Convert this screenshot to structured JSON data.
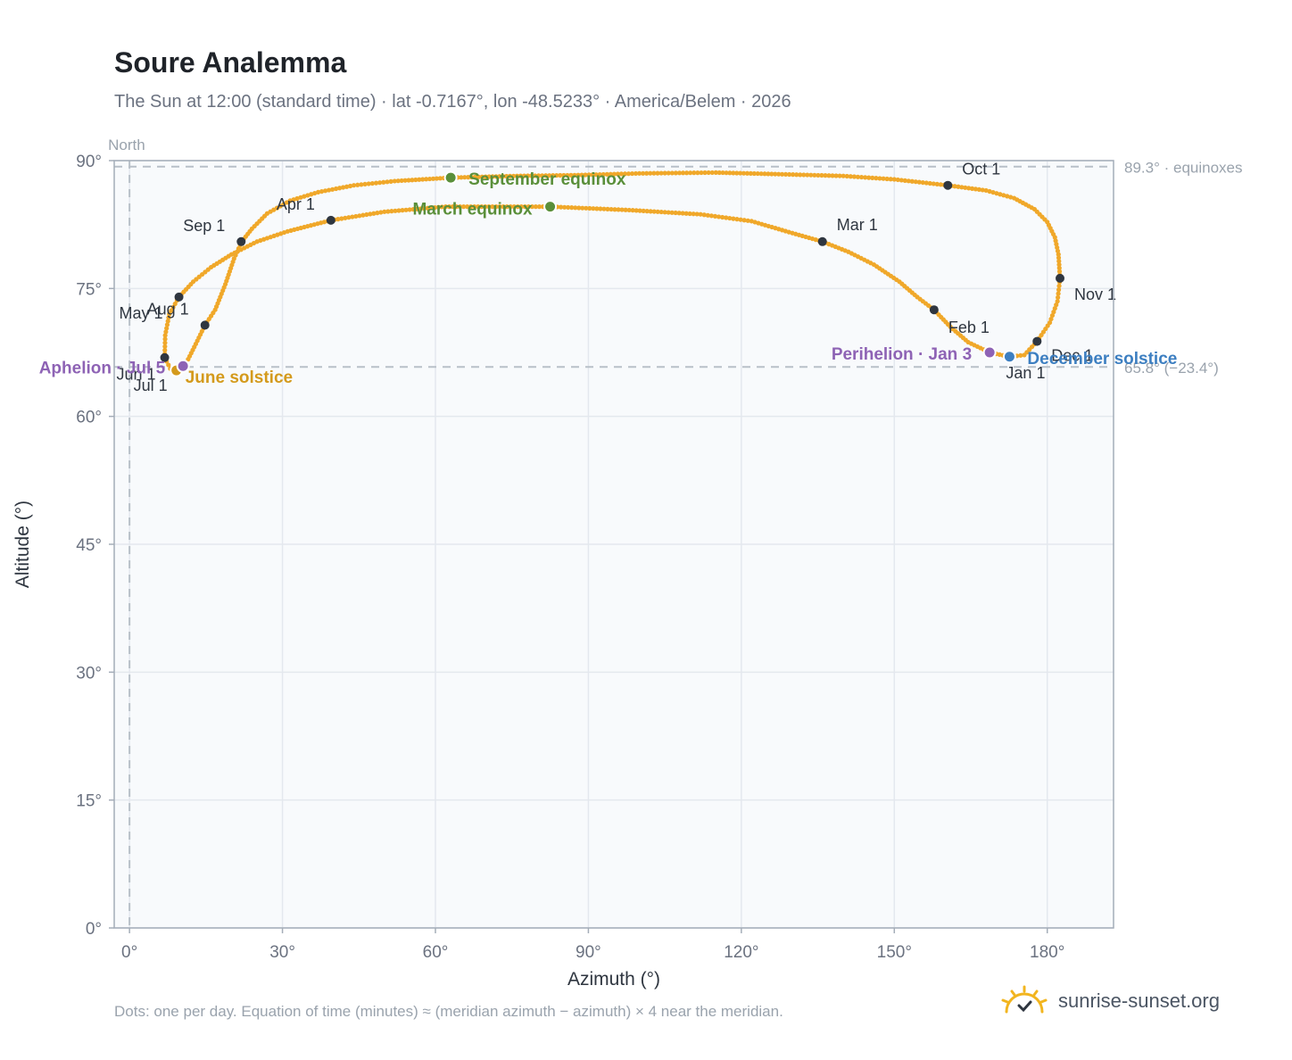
{
  "header": {
    "title": "Soure Analemma",
    "subtitle": "The Sun at 12:00 (standard time) · lat -0.7167°, lon -48.5233° · America/Belem · 2026"
  },
  "footer": {
    "note": "Dots: one per day. Equation of time (minutes) ≈ (meridian azimuth − azimuth) × 4 near the meridian.",
    "brand": "sunrise-sunset.org"
  },
  "colors": {
    "curve": "#f0a82a",
    "month_marker": "#2f3640",
    "equinox": "#5a8f3a",
    "june_solstice": "#d49a1c",
    "december_solstice": "#3d7fc1",
    "apsis": "#8e63b5",
    "reference_line": "#b8c0c8",
    "plot_background": "#f8fafc"
  },
  "chart_data": {
    "type": "scatter",
    "xlabel": "Azimuth (°)",
    "ylabel": "Altitude (°)",
    "xlim": [
      -3,
      193
    ],
    "ylim": [
      0,
      90
    ],
    "xticks": [
      0,
      30,
      60,
      90,
      120,
      150,
      180
    ],
    "xtick_labels": [
      "0°",
      "30°",
      "60°",
      "90°",
      "120°",
      "150°",
      "180°"
    ],
    "yticks": [
      0,
      15,
      30,
      45,
      60,
      75,
      90
    ],
    "ytick_labels": [
      "0°",
      "15°",
      "30°",
      "45°",
      "60°",
      "75°",
      "90°"
    ],
    "grid": true,
    "meridian": {
      "azimuth": 0,
      "label": "North"
    },
    "reference_lines": [
      {
        "altitude": 89.3,
        "label": "89.3° · equinoxes"
      },
      {
        "altitude": 65.8,
        "label": "65.8° (−23.4°)"
      }
    ],
    "analemma_path": [
      [
        172.6,
        67.0
      ],
      [
        175.5,
        67.2
      ],
      [
        178.0,
        68.8
      ],
      [
        180.5,
        71.0
      ],
      [
        182.0,
        73.5
      ],
      [
        182.5,
        76.2
      ],
      [
        182.2,
        79.0
      ],
      [
        181.5,
        81.0
      ],
      [
        180.0,
        82.8
      ],
      [
        177.5,
        84.3
      ],
      [
        173.5,
        85.6
      ],
      [
        168.0,
        86.5
      ],
      [
        160.5,
        87.1
      ],
      [
        150.0,
        87.8
      ],
      [
        140.0,
        88.2
      ],
      [
        128.0,
        88.4
      ],
      [
        115.0,
        88.6
      ],
      [
        100.0,
        88.5
      ],
      [
        88.0,
        88.3
      ],
      [
        76.0,
        88.2
      ],
      [
        63.0,
        88.0
      ],
      [
        52.0,
        87.6
      ],
      [
        44.0,
        87.1
      ],
      [
        37.0,
        86.3
      ],
      [
        31.5,
        85.3
      ],
      [
        27.0,
        83.8
      ],
      [
        24.0,
        82.0
      ],
      [
        22.0,
        80.5
      ],
      [
        20.5,
        78.5
      ],
      [
        18.8,
        75.5
      ],
      [
        16.8,
        72.5
      ],
      [
        14.8,
        70.7
      ],
      [
        13.0,
        68.5
      ],
      [
        11.5,
        66.7
      ],
      [
        10.5,
        65.9
      ],
      [
        9.2,
        65.4
      ],
      [
        8.0,
        65.6
      ],
      [
        6.9,
        66.9
      ],
      [
        7.0,
        69.5
      ],
      [
        7.8,
        72.0
      ],
      [
        9.7,
        74.0
      ],
      [
        12.5,
        75.8
      ],
      [
        16.0,
        77.5
      ],
      [
        20.0,
        79.0
      ],
      [
        25.0,
        80.5
      ],
      [
        31.0,
        81.7
      ],
      [
        39.5,
        83.0
      ],
      [
        50.0,
        84.0
      ],
      [
        62.0,
        84.6
      ],
      [
        82.5,
        84.6
      ],
      [
        98.0,
        84.2
      ],
      [
        112.0,
        83.7
      ],
      [
        122.0,
        82.9
      ],
      [
        130.0,
        81.5
      ],
      [
        135.9,
        80.5
      ],
      [
        141.0,
        79.3
      ],
      [
        146.0,
        77.8
      ],
      [
        151.0,
        75.8
      ],
      [
        154.5,
        74.0
      ],
      [
        157.8,
        72.5
      ],
      [
        161.0,
        70.5
      ],
      [
        164.5,
        68.7
      ],
      [
        168.7,
        67.5
      ],
      [
        172.6,
        67.0
      ]
    ],
    "month_markers": [
      {
        "label": "Jan 1",
        "azimuth": 172.6,
        "altitude": 67.0
      },
      {
        "label": "Feb 1",
        "azimuth": 157.8,
        "altitude": 72.5
      },
      {
        "label": "Mar 1",
        "azimuth": 135.9,
        "altitude": 80.5
      },
      {
        "label": "Apr 1",
        "azimuth": 39.5,
        "altitude": 83.0
      },
      {
        "label": "May 1",
        "azimuth": 9.7,
        "altitude": 74.0
      },
      {
        "label": "Jun 1",
        "azimuth": 6.9,
        "altitude": 66.9
      },
      {
        "label": "Jul 1",
        "azimuth": 9.2,
        "altitude": 65.4
      },
      {
        "label": "Aug 1",
        "azimuth": 14.8,
        "altitude": 70.7
      },
      {
        "label": "Sep 1",
        "azimuth": 21.9,
        "altitude": 80.5
      },
      {
        "label": "Oct 1",
        "azimuth": 160.5,
        "altitude": 87.1
      },
      {
        "label": "Nov 1",
        "azimuth": 182.5,
        "altitude": 76.2
      },
      {
        "label": "Dec 1",
        "azimuth": 178.0,
        "altitude": 68.8
      }
    ],
    "events": [
      {
        "label": "September equinox",
        "azimuth": 63.0,
        "altitude": 88.0,
        "kind": "equinox"
      },
      {
        "label": "March equinox",
        "azimuth": 82.5,
        "altitude": 84.6,
        "kind": "equinox"
      },
      {
        "label": "June solstice",
        "azimuth": 10.5,
        "altitude": 65.9,
        "kind": "june_solstice"
      },
      {
        "label": "December solstice",
        "azimuth": 172.6,
        "altitude": 67.0,
        "kind": "december_solstice"
      },
      {
        "label": "Aphelion · Jul 5",
        "azimuth": 10.5,
        "altitude": 65.9,
        "kind": "apsis"
      },
      {
        "label": "Perihelion · Jan 3",
        "azimuth": 168.7,
        "altitude": 67.5,
        "kind": "apsis"
      }
    ]
  }
}
